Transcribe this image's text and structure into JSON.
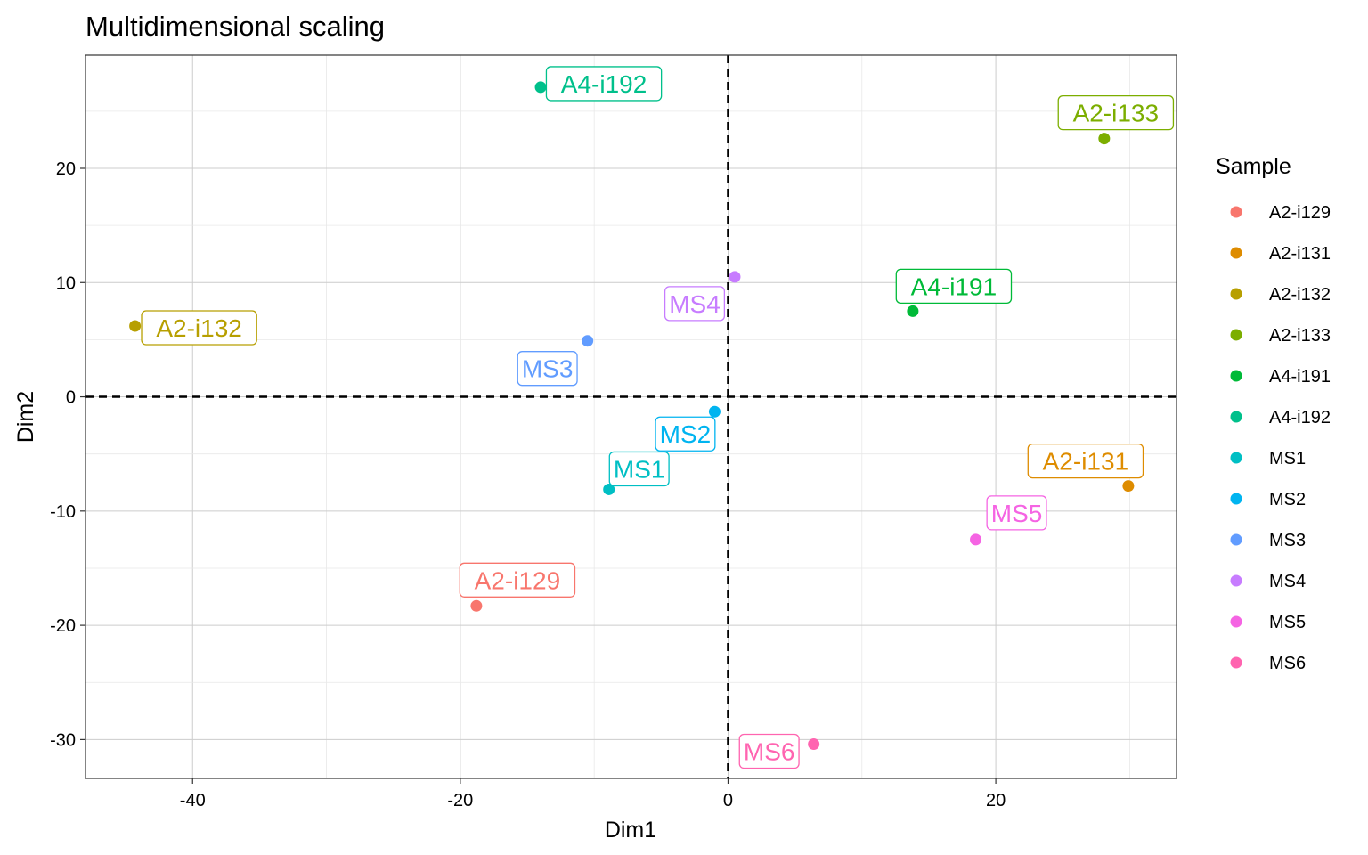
{
  "chart_data": {
    "type": "scatter",
    "title": "Multidimensional scaling",
    "xlabel": "Dim1",
    "ylabel": "Dim2",
    "xlim": [
      -48,
      33.5
    ],
    "ylim": [
      -33.4,
      29.9
    ],
    "xticks": [
      -40,
      -20,
      0,
      20
    ],
    "yticks": [
      -30,
      -20,
      -10,
      0,
      10,
      20
    ],
    "xtick_labels": [
      "-40",
      "-20",
      "0",
      "20"
    ],
    "ytick_labels": [
      "-30",
      "-20",
      "-10",
      "0",
      "10",
      "20"
    ],
    "grid": true,
    "reference_lines": {
      "x": 0,
      "y": 0,
      "style": "dashed"
    },
    "legend": {
      "title": "Sample",
      "position": "right"
    },
    "points": [
      {
        "label": "A2-i129",
        "x": -18.8,
        "y": -18.3,
        "color": "#F8766D"
      },
      {
        "label": "A2-i131",
        "x": 29.9,
        "y": -7.8,
        "color": "#DE8C00"
      },
      {
        "label": "A2-i132",
        "x": -44.3,
        "y": 6.2,
        "color": "#B79F00"
      },
      {
        "label": "A2-i133",
        "x": 28.1,
        "y": 22.6,
        "color": "#7CAE00"
      },
      {
        "label": "A4-i191",
        "x": 13.8,
        "y": 7.5,
        "color": "#00BA38"
      },
      {
        "label": "A4-i192",
        "x": -14.0,
        "y": 27.1,
        "color": "#00C08B"
      },
      {
        "label": "MS1",
        "x": -8.9,
        "y": -8.1,
        "color": "#00BFC4"
      },
      {
        "label": "MS2",
        "x": -1.0,
        "y": -1.3,
        "color": "#00B4F0"
      },
      {
        "label": "MS3",
        "x": -10.5,
        "y": 4.9,
        "color": "#619CFF"
      },
      {
        "label": "MS4",
        "x": 0.5,
        "y": 10.5,
        "color": "#C77CFF"
      },
      {
        "label": "MS5",
        "x": 18.5,
        "y": -12.5,
        "color": "#F564E3"
      },
      {
        "label": "MS6",
        "x": 6.4,
        "y": -30.4,
        "color": "#FF64B0"
      }
    ]
  }
}
